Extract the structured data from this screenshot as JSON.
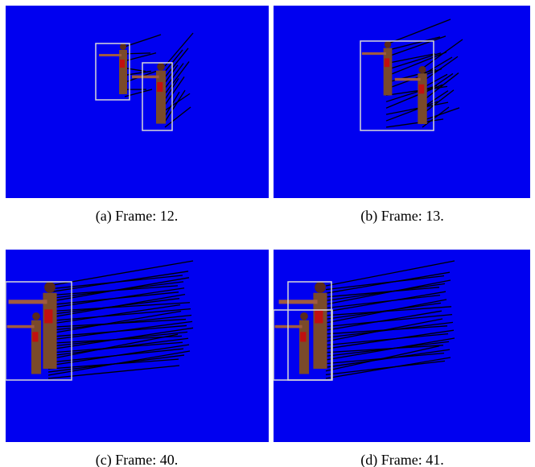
{
  "figures": [
    {
      "caption": "(a) Frame: 12."
    },
    {
      "caption": "(b) Frame: 13."
    },
    {
      "caption": "(c) Frame: 40."
    },
    {
      "caption": "(d) Frame: 41."
    }
  ]
}
